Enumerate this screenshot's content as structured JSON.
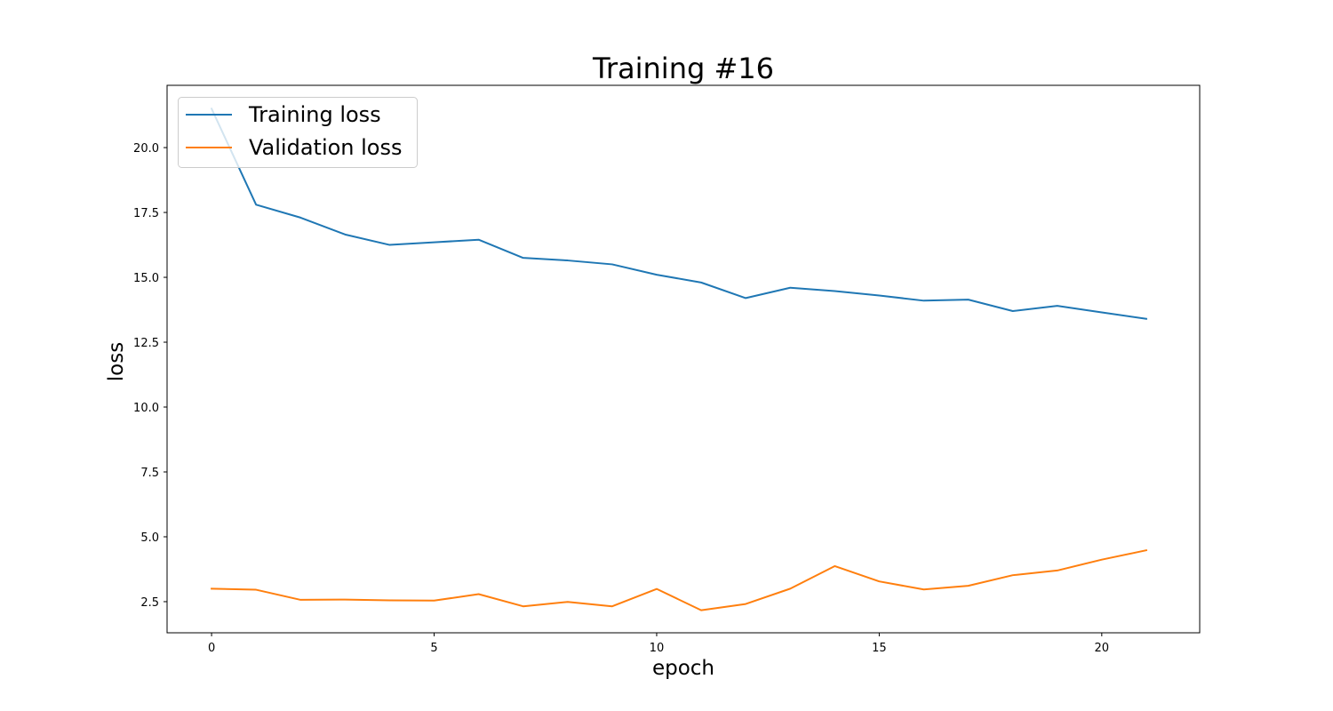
{
  "chart_data": {
    "type": "line",
    "title": "Training #16",
    "xlabel": "epoch",
    "ylabel": "loss",
    "xlim": [
      -1,
      22.2
    ],
    "ylim": [
      1.3,
      22.4
    ],
    "x": [
      0,
      1,
      2,
      3,
      4,
      5,
      6,
      7,
      8,
      9,
      10,
      11,
      12,
      13,
      14,
      15,
      16,
      17,
      18,
      19,
      20,
      21
    ],
    "xticks": [
      0,
      5,
      10,
      15,
      20
    ],
    "xtick_labels": [
      "0",
      "5",
      "10",
      "15",
      "20"
    ],
    "yticks": [
      2.5,
      5.0,
      7.5,
      10.0,
      12.5,
      15.0,
      17.5,
      20.0
    ],
    "ytick_labels": [
      "2.5",
      "5.0",
      "7.5",
      "10.0",
      "12.5",
      "15.0",
      "17.5",
      "20.0"
    ],
    "grid": false,
    "legend_position": "top-left",
    "series": [
      {
        "name": "Training loss",
        "color": "#1f77b4",
        "values": [
          21.5,
          17.8,
          17.3,
          16.65,
          16.25,
          16.35,
          16.45,
          15.75,
          15.65,
          15.5,
          15.1,
          14.8,
          14.2,
          14.6,
          14.47,
          14.3,
          14.1,
          14.14,
          13.7,
          13.9,
          13.65,
          13.4
        ]
      },
      {
        "name": "Validation loss",
        "color": "#ff7f0e",
        "values": [
          3.0,
          2.96,
          2.57,
          2.58,
          2.55,
          2.54,
          2.79,
          2.32,
          2.49,
          2.32,
          2.99,
          2.17,
          2.41,
          3.0,
          3.87,
          3.28,
          2.97,
          3.11,
          3.52,
          3.7,
          4.12,
          4.48
        ]
      }
    ]
  }
}
